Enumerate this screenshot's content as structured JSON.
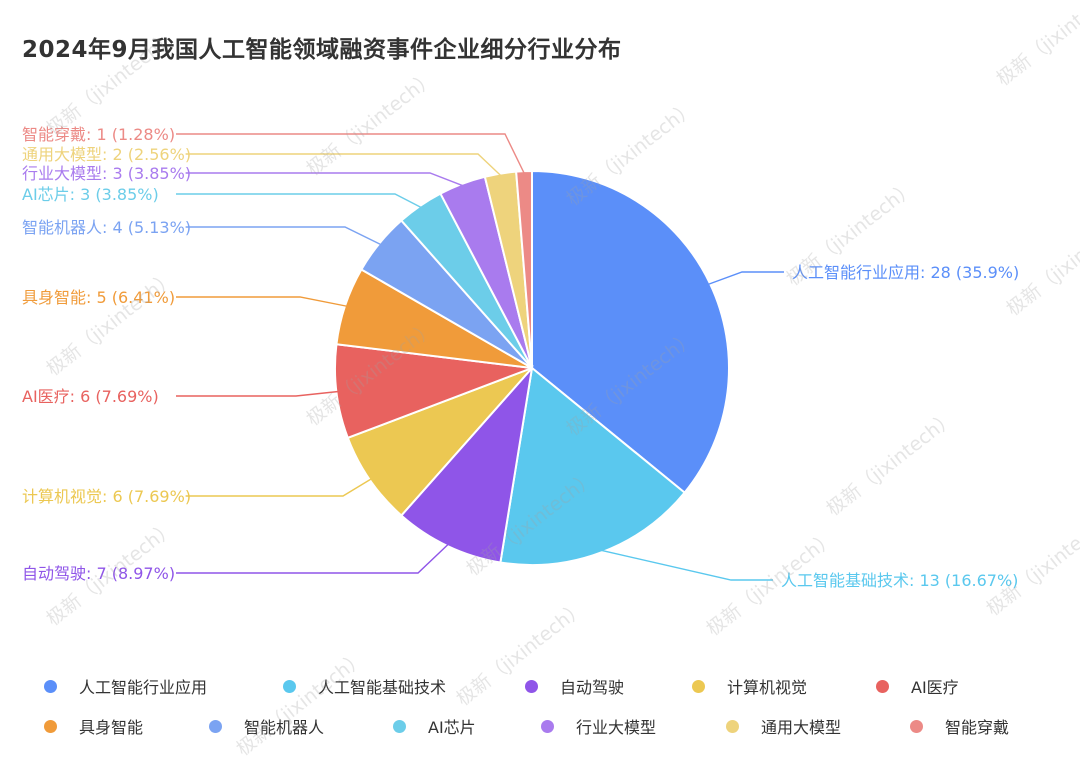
{
  "chart_data": {
    "type": "pie",
    "title": "2024年9月我国人工智能领域融资事件企业细分行业分布",
    "slices": [
      {
        "name": "人工智能行业应用",
        "value": 28,
        "label": "人工智能行业应用: 28 (35.9%)",
        "color": "#5B8FF9"
      },
      {
        "name": "人工智能基础技术",
        "value": 13,
        "label": "人工智能基础技术: 13 (16.67%)",
        "color": "#5AC8EE"
      },
      {
        "name": "自动驾驶",
        "value": 7,
        "label": "自动驾驶: 7 (8.97%)",
        "color": "#8F55E8"
      },
      {
        "name": "计算机视觉",
        "value": 6,
        "label": "计算机视觉: 6 (7.69%)",
        "color": "#ECC852"
      },
      {
        "name": "AI医疗",
        "value": 6,
        "label": "AI医疗: 6 (7.69%)",
        "color": "#E8625F"
      },
      {
        "name": "具身智能",
        "value": 5,
        "label": "具身智能: 5 (6.41%)",
        "color": "#F09B3A"
      },
      {
        "name": "智能机器人",
        "value": 4,
        "label": "智能机器人: 4 (5.13%)",
        "color": "#7BA3F2"
      },
      {
        "name": "AI芯片",
        "value": 3,
        "label": "AI芯片: 3 (3.85%)",
        "color": "#6CCDE9"
      },
      {
        "name": "行业大模型",
        "value": 3,
        "label": "行业大模型: 3 (3.85%)",
        "color": "#A97BEE"
      },
      {
        "name": "通用大模型",
        "value": 2,
        "label": "通用大模型: 2 (2.56%)",
        "color": "#EED37C"
      },
      {
        "name": "智能穿戴",
        "value": 1,
        "label": "智能穿戴: 1 (1.28%)",
        "color": "#EC8A86"
      }
    ],
    "legend_position": "bottom"
  },
  "watermark": "极新（jixintech）"
}
